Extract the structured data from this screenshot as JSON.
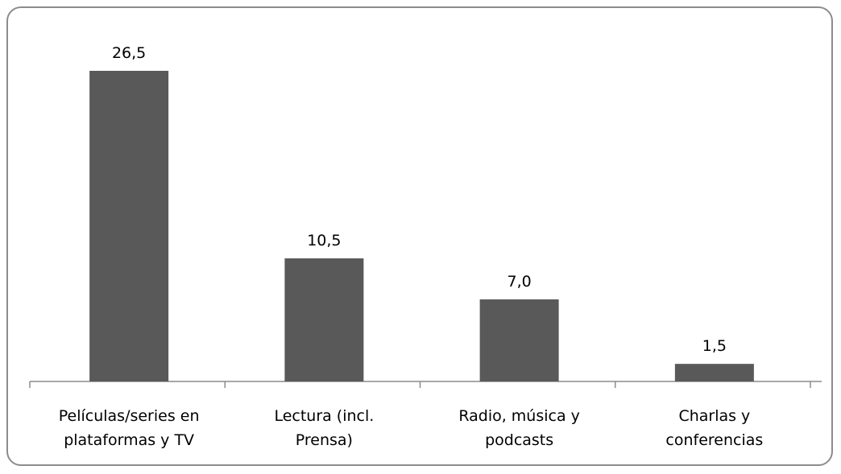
{
  "chart_data": {
    "type": "bar",
    "title": "",
    "xlabel": "",
    "ylabel": "",
    "categories": [
      [
        "Películas/series en",
        "plataformas y TV"
      ],
      [
        "Lectura (incl.",
        "Prensa)"
      ],
      [
        "Radio, música y",
        "podcasts"
      ],
      [
        "Charlas y",
        "conferencias"
      ]
    ],
    "values": [
      26.5,
      10.5,
      7.0,
      1.5
    ],
    "value_labels": [
      "26,5",
      "10,5",
      "7,0",
      "1,5"
    ],
    "ylim": [
      0,
      26.5
    ],
    "grid": false,
    "bar_color": "#595959"
  }
}
